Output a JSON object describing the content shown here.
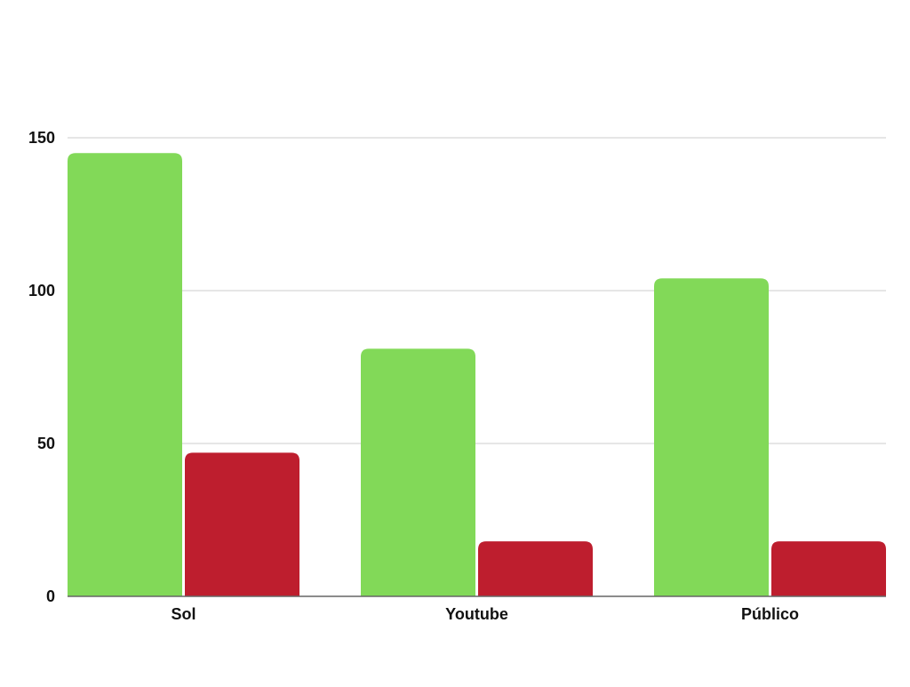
{
  "chart_data": {
    "type": "bar",
    "categories": [
      "Sol",
      "Youtube",
      "Público"
    ],
    "series": [
      {
        "values": [
          145,
          81,
          104
        ],
        "color": "#82d958"
      },
      {
        "values": [
          47,
          18,
          18
        ],
        "color": "#be1e2e"
      }
    ],
    "ylim": [
      0,
      150
    ],
    "yticks": [
      0,
      50,
      100,
      150
    ],
    "grid": true,
    "gridColor": "#cccccc",
    "axisColor": "#666666"
  }
}
